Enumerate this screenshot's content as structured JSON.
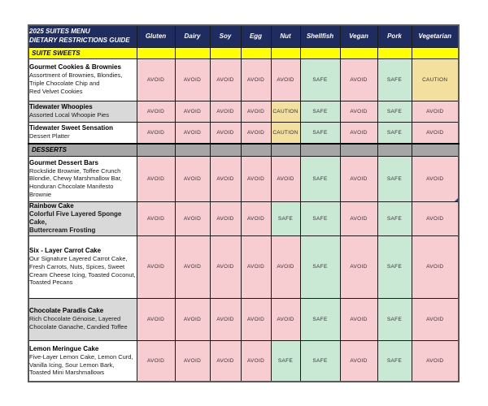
{
  "table": {
    "title_line1": "2025 SUITES MENU",
    "title_line2": "DIETARY RESTRICTIONS GUIDE",
    "columns": [
      "Gluten",
      "Dairy",
      "Soy",
      "Egg",
      "Nut",
      "Shellfish",
      "Vegan",
      "Pork",
      "Vegetarian"
    ],
    "sections": [
      {
        "label": "SUITE SWEETS",
        "band": "yellow",
        "rows": [
          {
            "name": "Gourmet Cookies & Brownies",
            "description": "Assortment of Brownies, Blondies,\nTriple Chocolate Chip and\nRed Velvet Cookies",
            "shaded": false,
            "bold_desc": false,
            "values": [
              "AVOID",
              "AVOID",
              "AVOID",
              "AVOID",
              "AVOID",
              "SAFE",
              "AVOID",
              "SAFE",
              "CAUTION"
            ]
          },
          {
            "name": "Tidewater Whoopies",
            "description": "Assorted Local Whoopie Pies",
            "shaded": true,
            "bold_desc": false,
            "values": [
              "AVOID",
              "AVOID",
              "AVOID",
              "AVOID",
              "CAUTION",
              "SAFE",
              "AVOID",
              "SAFE",
              "AVOID"
            ]
          },
          {
            "name": "Tidewater Sweet Sensation",
            "description": "Dessert Platter",
            "shaded": false,
            "bold_desc": false,
            "values": [
              "AVOID",
              "AVOID",
              "AVOID",
              "AVOID",
              "CAUTION",
              "SAFE",
              "AVOID",
              "SAFE",
              "AVOID"
            ]
          }
        ]
      },
      {
        "label": "DESSERTS",
        "band": "gray",
        "rows": [
          {
            "name": "Gourmet Dessert Bars",
            "description": "Rockslide Brownie, Toffee Crunch\nBlondie, Chewy Marshmallow Bar,\nHonduran Chocolate Manifesto Brownie",
            "shaded": false,
            "bold_desc": false,
            "corner_marker": true,
            "values": [
              "AVOID",
              "AVOID",
              "AVOID",
              "AVOID",
              "AVOID",
              "SAFE",
              "AVOID",
              "SAFE",
              "AVOID"
            ]
          },
          {
            "name": "Rainbow Cake",
            "description": "Colorful Five Layered Sponge Cake,\nButtercream Frosting",
            "shaded": true,
            "bold_desc": true,
            "values": [
              "AVOID",
              "AVOID",
              "AVOID",
              "AVOID",
              "SAFE",
              "SAFE",
              "AVOID",
              "SAFE",
              "AVOID"
            ]
          },
          {
            "name": "Six - Layer Carrot Cake",
            "description": "Our Signature Layered Carrot Cake,\nFresh Carrots, Nuts, Spices, Sweet\nCream Cheese Icing, Toasted Coconut,\nToasted Pecans",
            "shaded": false,
            "bold_desc": false,
            "values": [
              "AVOID",
              "AVOID",
              "AVOID",
              "AVOID",
              "AVOID",
              "SAFE",
              "AVOID",
              "SAFE",
              "AVOID"
            ]
          },
          {
            "name": "Chocolate Paradis Cake",
            "description": "Rich Chocolate Génoise, Layered\nChocolate Ganache, Candied Toffee",
            "shaded": true,
            "bold_desc": false,
            "values": [
              "AVOID",
              "AVOID",
              "AVOID",
              "AVOID",
              "AVOID",
              "SAFE",
              "AVOID",
              "SAFE",
              "AVOID"
            ]
          },
          {
            "name": "Lemon Meringue Cake",
            "description": "Five-Layer Lemon Cake, Lemon Curd,\nVanilla Icing, Sour Lemon Bark,\nToasted Mini Marshmallows",
            "shaded": false,
            "bold_desc": false,
            "values": [
              "AVOID",
              "AVOID",
              "AVOID",
              "AVOID",
              "SAFE",
              "SAFE",
              "AVOID",
              "SAFE",
              "AVOID"
            ]
          }
        ]
      }
    ]
  },
  "colors": {
    "header_bg": "#1F2C5F",
    "header_text": "#FFFFFF",
    "band_yellow": "#FFFF00",
    "band_gray": "#A6A6A6",
    "avoid_bg": "#F8CDD2",
    "safe_bg": "#C9E9D4",
    "caution_bg": "#F3DF9E",
    "shaded_label_bg": "#D9D9D9",
    "value_text": "#333333"
  }
}
